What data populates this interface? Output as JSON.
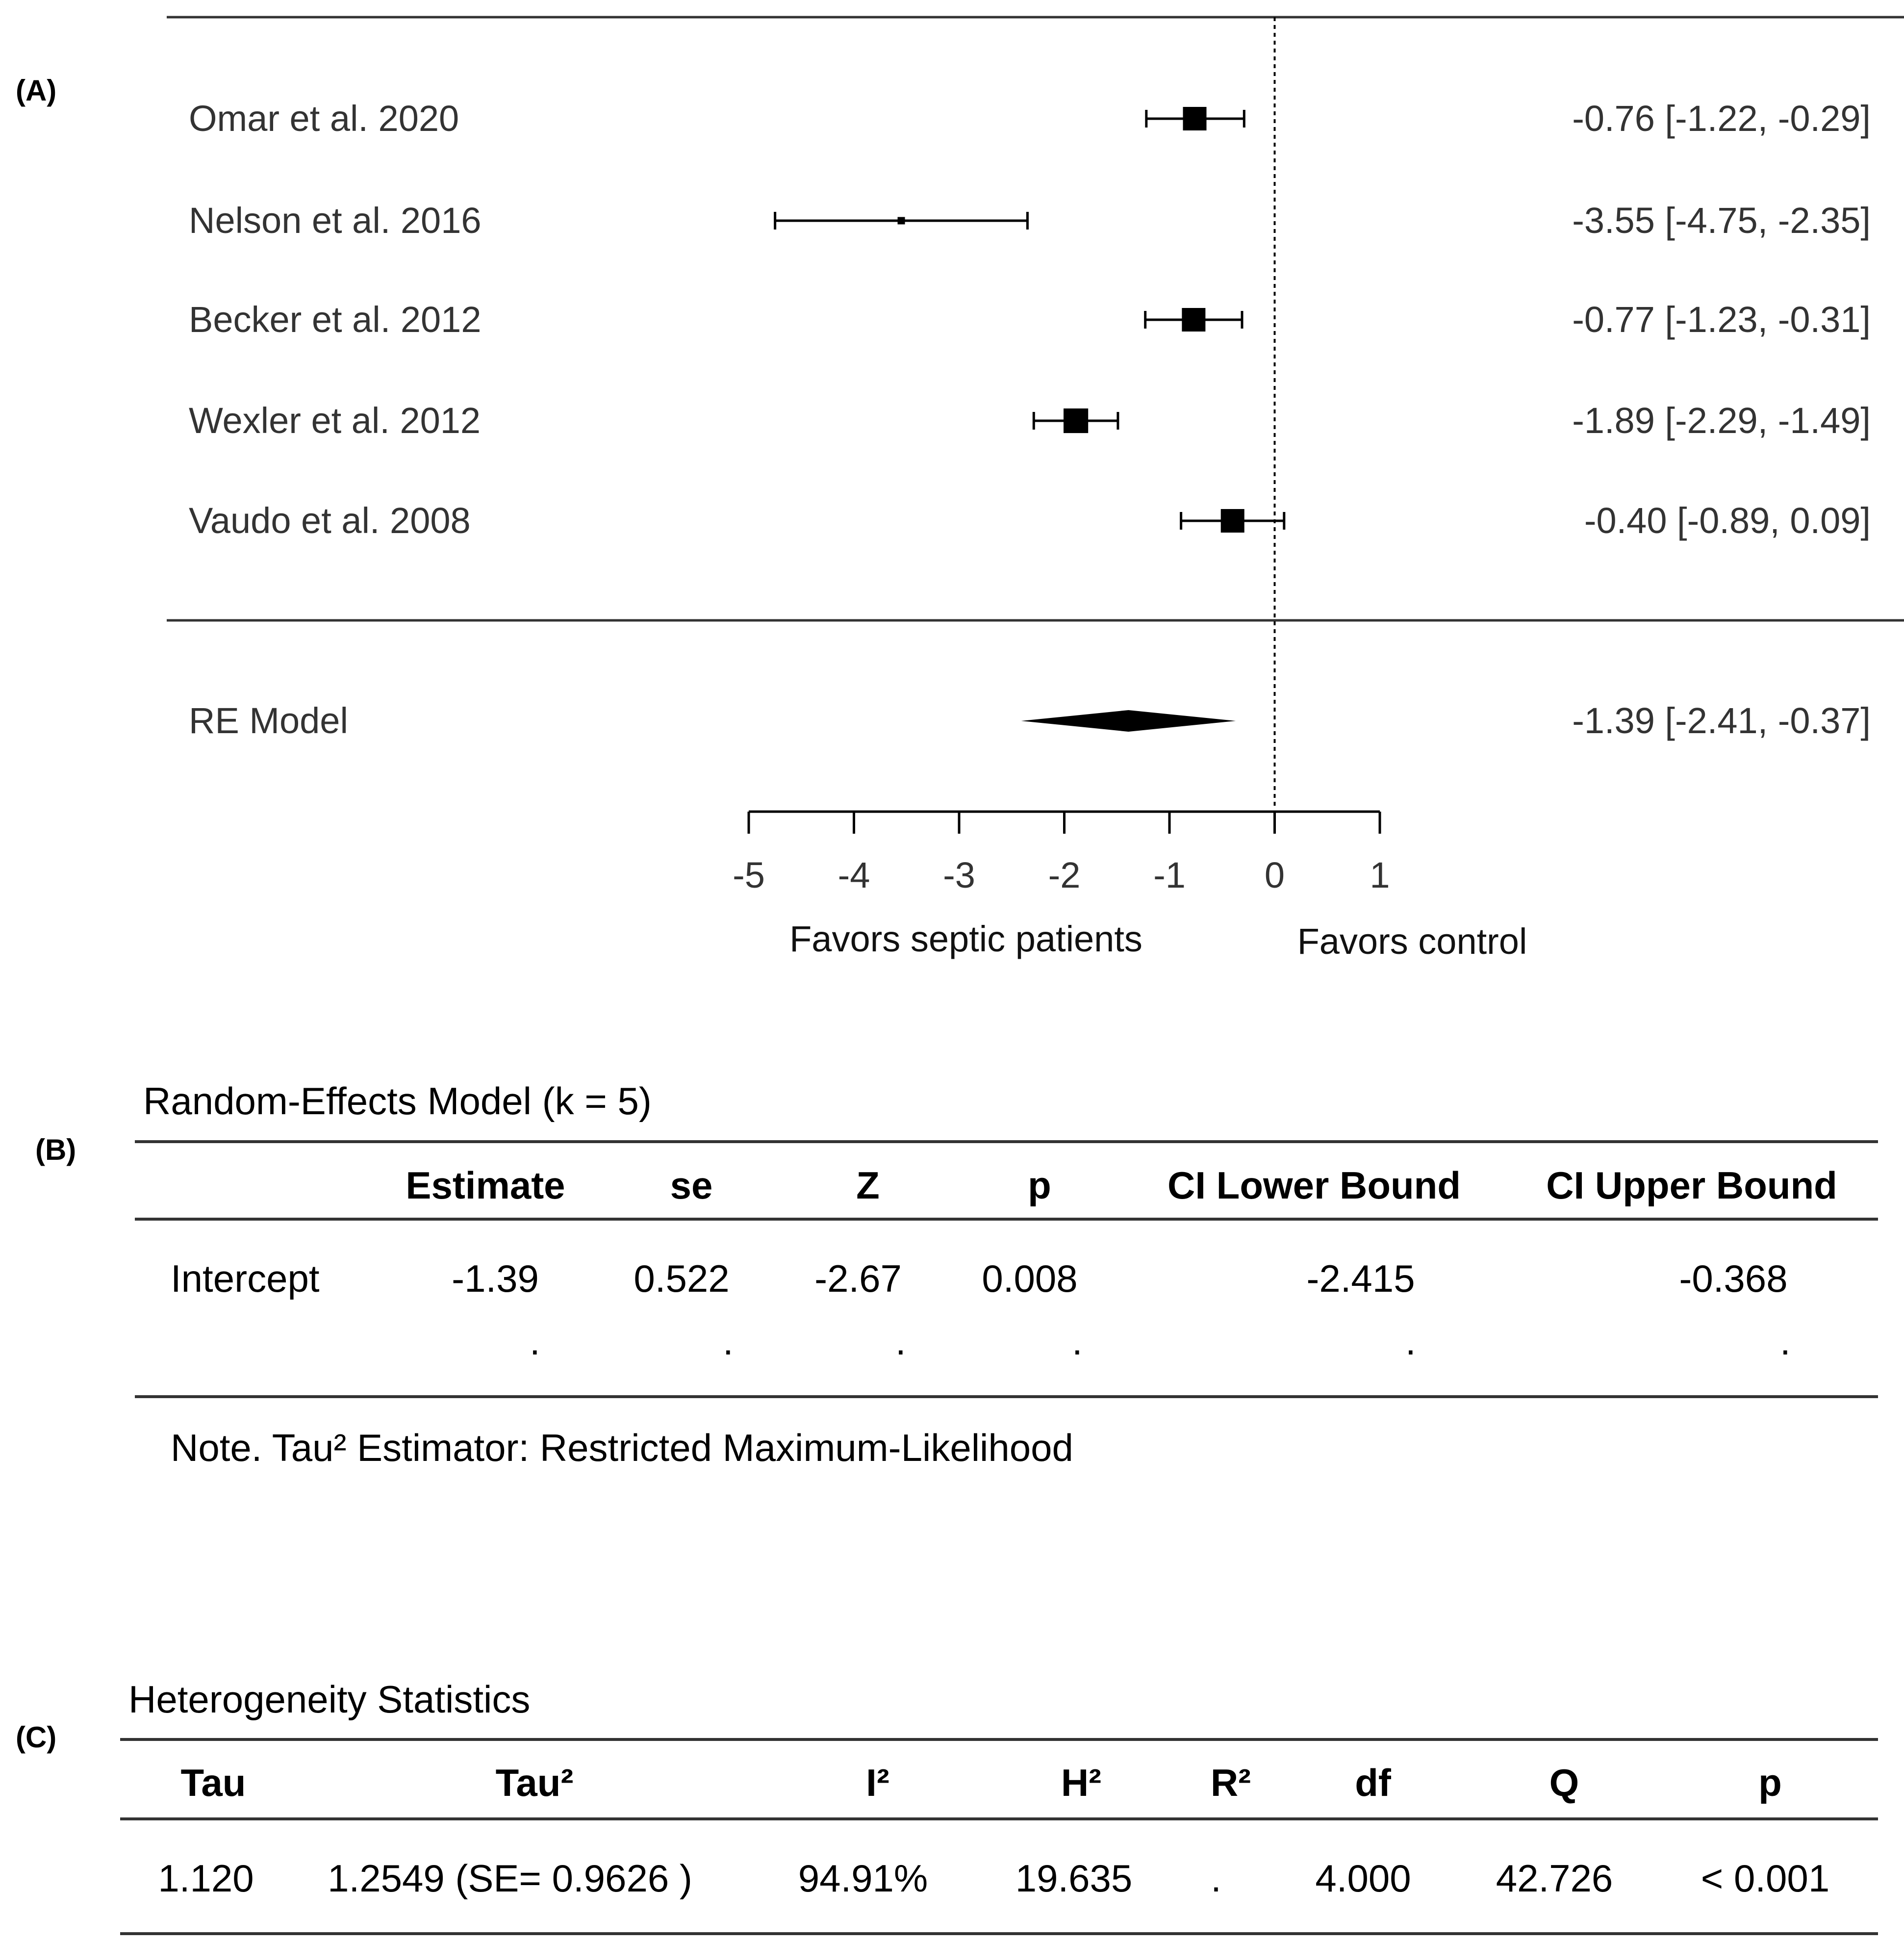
{
  "panels": {
    "a": "(A)",
    "b": "(B)",
    "c": "(C)"
  },
  "chart_data": {
    "type": "forest",
    "studies": [
      {
        "label": "Omar et  al. 2020",
        "estimate": -0.76,
        "ci": [
          -1.22,
          -0.29
        ],
        "weight": 1.0,
        "text": "-0.76 [-1.22, -0.29]"
      },
      {
        "label": "Nelson et al. 2016",
        "estimate": -3.55,
        "ci": [
          -4.75,
          -2.35
        ],
        "weight": 0.25,
        "text": "-3.55 [-4.75, -2.35]"
      },
      {
        "label": "Becker et al. 2012",
        "estimate": -0.77,
        "ci": [
          -1.23,
          -0.31
        ],
        "weight": 1.0,
        "text": "-0.77 [-1.23, -0.31]"
      },
      {
        "label": "Wexler et al. 2012",
        "estimate": -1.89,
        "ci": [
          -2.29,
          -1.49
        ],
        "weight": 1.05,
        "text": "-1.89 [-2.29, -1.49]"
      },
      {
        "label": "Vaudo et al. 2008",
        "estimate": -0.4,
        "ci": [
          -0.89,
          0.09
        ],
        "weight": 1.0,
        "text": "-0.40 [-0.89,  0.09]"
      }
    ],
    "summary": {
      "label": "RE Model",
      "estimate": -1.39,
      "ci": [
        -2.41,
        -0.37
      ],
      "text": "-1.39 [-2.41, -0.37]"
    },
    "x_ticks": [
      -5,
      -4,
      -3,
      -2,
      -1,
      0,
      1
    ],
    "x_tick_labels": [
      "-5",
      "-4",
      "-3",
      "-2",
      "-1",
      "0",
      "1"
    ],
    "xlim": [
      -5,
      1
    ],
    "reference_line": 0,
    "favors_left": "Favors septic patients",
    "favors_right": "Favors control"
  },
  "table_b": {
    "title": "Random-Effects Model (k = 5)",
    "headers": [
      "",
      "Estimate",
      "se",
      "Z",
      "p",
      "CI Lower Bound",
      "CI Upper Bound"
    ],
    "row": [
      "Intercept",
      "-1.39",
      "0.522",
      "-2.67",
      "0.008",
      "-2.415",
      "-0.368"
    ],
    "dots": [
      ".",
      ".",
      ".",
      ".",
      ".",
      "."
    ],
    "note": "Note. Tau² Estimator: Restricted Maximum-Likelihood"
  },
  "table_c": {
    "title": "Heterogeneity Statistics",
    "headers": [
      "Tau",
      "Tau²",
      "I²",
      "H²",
      "R²",
      "df",
      "Q",
      "p"
    ],
    "row": [
      "1.120",
      "1.2549 (SE= 0.9626 )",
      "94.91%",
      "19.635",
      ".",
      "4.000",
      "42.726",
      "< 0.001"
    ]
  }
}
